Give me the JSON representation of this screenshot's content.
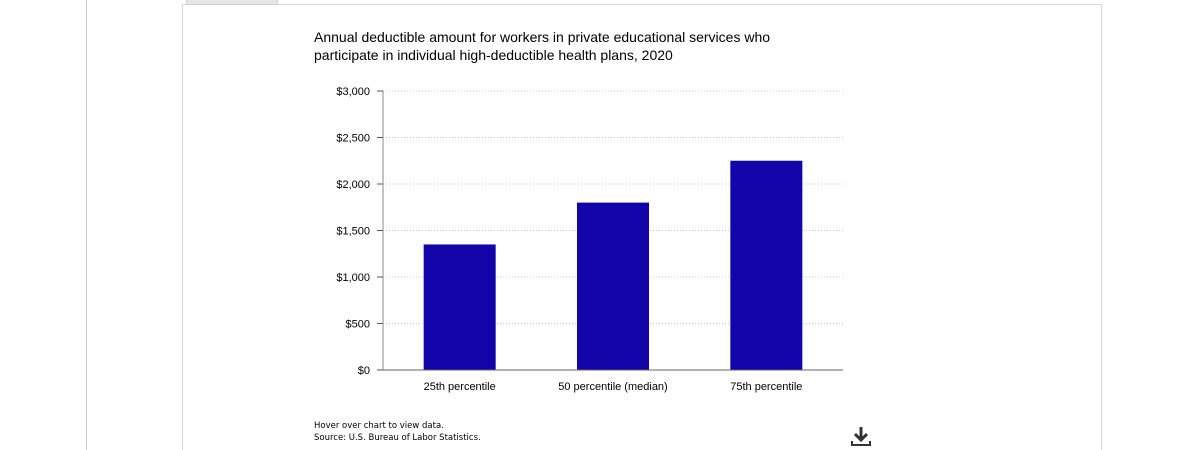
{
  "chart_data": {
    "type": "bar",
    "title": "Annual deductible amount for workers in private educational services who participate in individual high-deductible health plans, 2020",
    "categories": [
      "25th percentile",
      "50 percentile (median)",
      "75th percentile"
    ],
    "values": [
      1350,
      1800,
      2250
    ],
    "ylim": [
      0,
      3000
    ],
    "yticks": [
      "$0",
      "$500",
      "$1,000",
      "$1,500",
      "$2,000",
      "$2,500",
      "$3,000"
    ],
    "ytick_values": [
      0,
      500,
      1000,
      1500,
      2000,
      2500,
      3000
    ],
    "xlabel": "",
    "ylabel": "",
    "grid": true,
    "bar_color": "#1104a8"
  },
  "footnote": {
    "hover": "Hover over chart to view data.",
    "source": "Source: U.S. Bureau of Labor Statistics."
  },
  "download_icon": "download-icon"
}
